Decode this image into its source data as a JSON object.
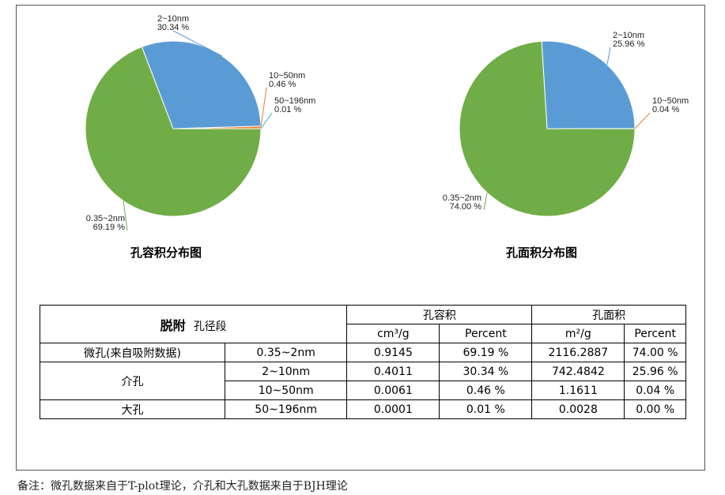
{
  "chart_data": [
    {
      "type": "pie",
      "title": "孔容积分布图",
      "slices": [
        {
          "name": "0.35~2nm",
          "percent_label": "69.19 %",
          "value": 69.19,
          "color": "#70ad47"
        },
        {
          "name": "2~10nm",
          "percent_label": "30.34 %",
          "value": 30.34,
          "color": "#5b9bd5"
        },
        {
          "name": "10~50nm",
          "percent_label": "0.46 %",
          "value": 0.46,
          "color": "#ed7d31"
        },
        {
          "name": "50~196nm",
          "percent_label": "0.01 %",
          "value": 0.01,
          "color": "#2bb7c7"
        }
      ]
    },
    {
      "type": "pie",
      "title": "孔面积分布图",
      "slices": [
        {
          "name": "0.35~2nm",
          "percent_label": "74.00 %",
          "value": 74.0,
          "color": "#70ad47"
        },
        {
          "name": "2~10nm",
          "percent_label": "25.96 %",
          "value": 25.96,
          "color": "#5b9bd5"
        },
        {
          "name": "10~50nm",
          "percent_label": "0.04 %",
          "value": 0.04,
          "color": "#ed7d31"
        }
      ]
    }
  ],
  "table": {
    "header_bold": "脱附",
    "header_label": "孔径段",
    "group_volume": "孔容积",
    "group_area": "孔面积",
    "unit_volume": "cm³/g",
    "unit_area": "m²/g",
    "percent": "Percent",
    "rows": [
      {
        "category": "微孔(来自吸附数据)",
        "range": "0.35~2nm",
        "vol": "0.9145",
        "vol_pct": "69.19 %",
        "area": "2116.2887",
        "area_pct": "74.00 %"
      },
      {
        "category": "介孔",
        "range": "2~10nm",
        "vol": "0.4011",
        "vol_pct": "30.34 %",
        "area": "742.4842",
        "area_pct": "25.96 %"
      },
      {
        "category": "",
        "range": "10~50nm",
        "vol": "0.0061",
        "vol_pct": "0.46 %",
        "area": "1.1611",
        "area_pct": "0.04 %"
      },
      {
        "category": "大孔",
        "range": "50~196nm",
        "vol": "0.0001",
        "vol_pct": "0.01 %",
        "area": "0.0028",
        "area_pct": "0.00 %"
      }
    ]
  },
  "footnote": "备注：微孔数据来自于T-plot理论，介孔和大孔数据来自于BJH理论"
}
